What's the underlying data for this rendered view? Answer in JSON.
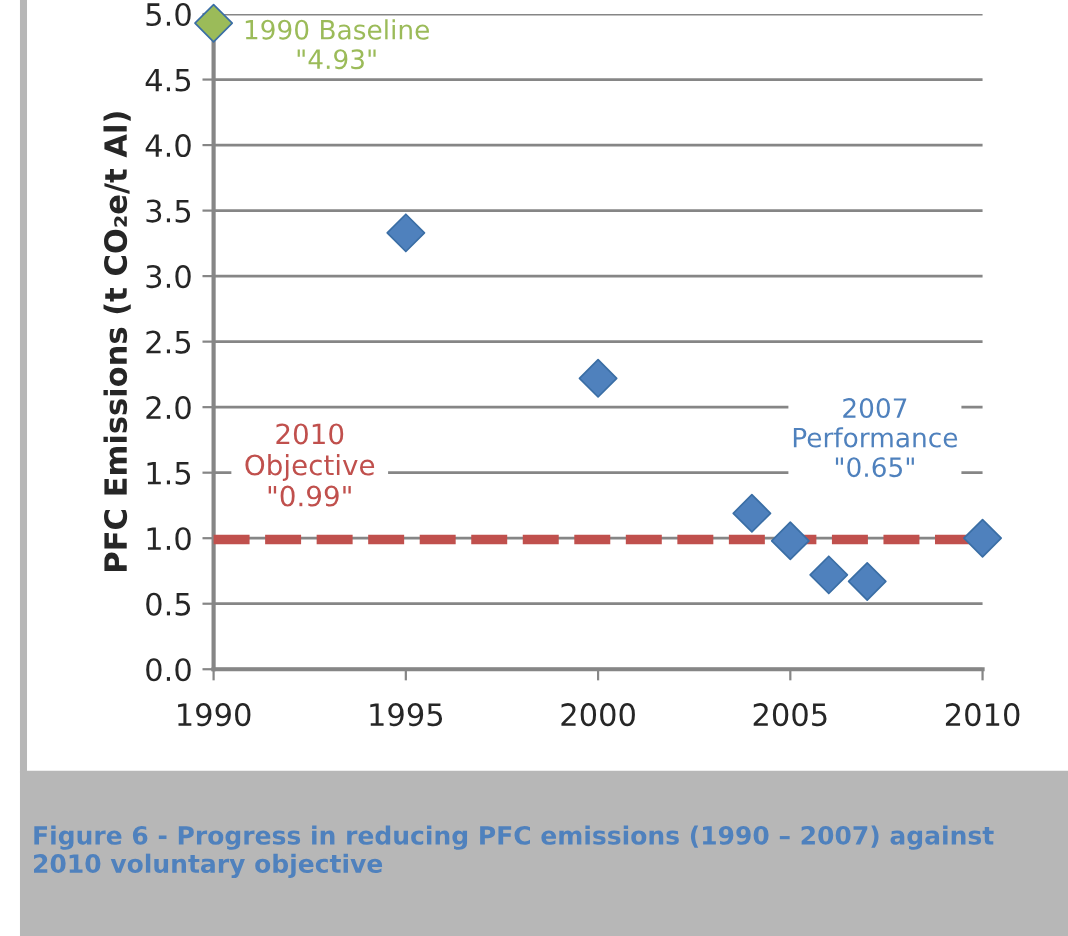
{
  "chart_data": {
    "type": "scatter",
    "ylabel": "PFC Emissions (t CO₂e/t Al)",
    "x": [
      1990,
      1995,
      2000,
      2004,
      2005,
      2006,
      2007,
      2010
    ],
    "series": [
      {
        "values": [
          4.93,
          3.33,
          2.22,
          1.19,
          0.98,
          0.72,
          0.67,
          1.0
        ],
        "colors": [
          "#9bbb59",
          "#4f81bd",
          "#4f81bd",
          "#4f81bd",
          "#4f81bd",
          "#4f81bd",
          "#4f81bd",
          "#4f81bd"
        ]
      }
    ],
    "marker": "diamond",
    "xlim": [
      1990,
      2010
    ],
    "xticks": [
      1990,
      1995,
      2000,
      2005,
      2010
    ],
    "ylim": [
      0,
      5
    ],
    "yticks": [
      {
        "value": 0,
        "label": "0.0"
      },
      {
        "value": 0.5,
        "label": "0.5"
      },
      {
        "value": 1,
        "label": "1.0"
      },
      {
        "value": 1.5,
        "label": "1.5"
      },
      {
        "value": 2,
        "label": "2.0"
      },
      {
        "value": 2.5,
        "label": "2.5"
      },
      {
        "value": 3,
        "label": "3.0"
      },
      {
        "value": 3.5,
        "label": "3.5"
      },
      {
        "value": 4,
        "label": "4.0"
      },
      {
        "value": 4.5,
        "label": "4.5"
      },
      {
        "value": 5,
        "label": "5.0"
      }
    ],
    "grid": "y",
    "ref_lines": [
      {
        "axis": "y",
        "value": 0.99,
        "label": "2010\nObjective\n\"0.99\"",
        "color": "#c0504d",
        "line_style": "dashed"
      }
    ],
    "annotations": [
      "1990 Baseline\n\"4.93\"",
      "2007\nPerformance\n\"0.65\"",
      "Figure 6 - Progress in reducing PFC emissions (1990 – 2007) against\n2010 voluntary objective"
    ]
  }
}
